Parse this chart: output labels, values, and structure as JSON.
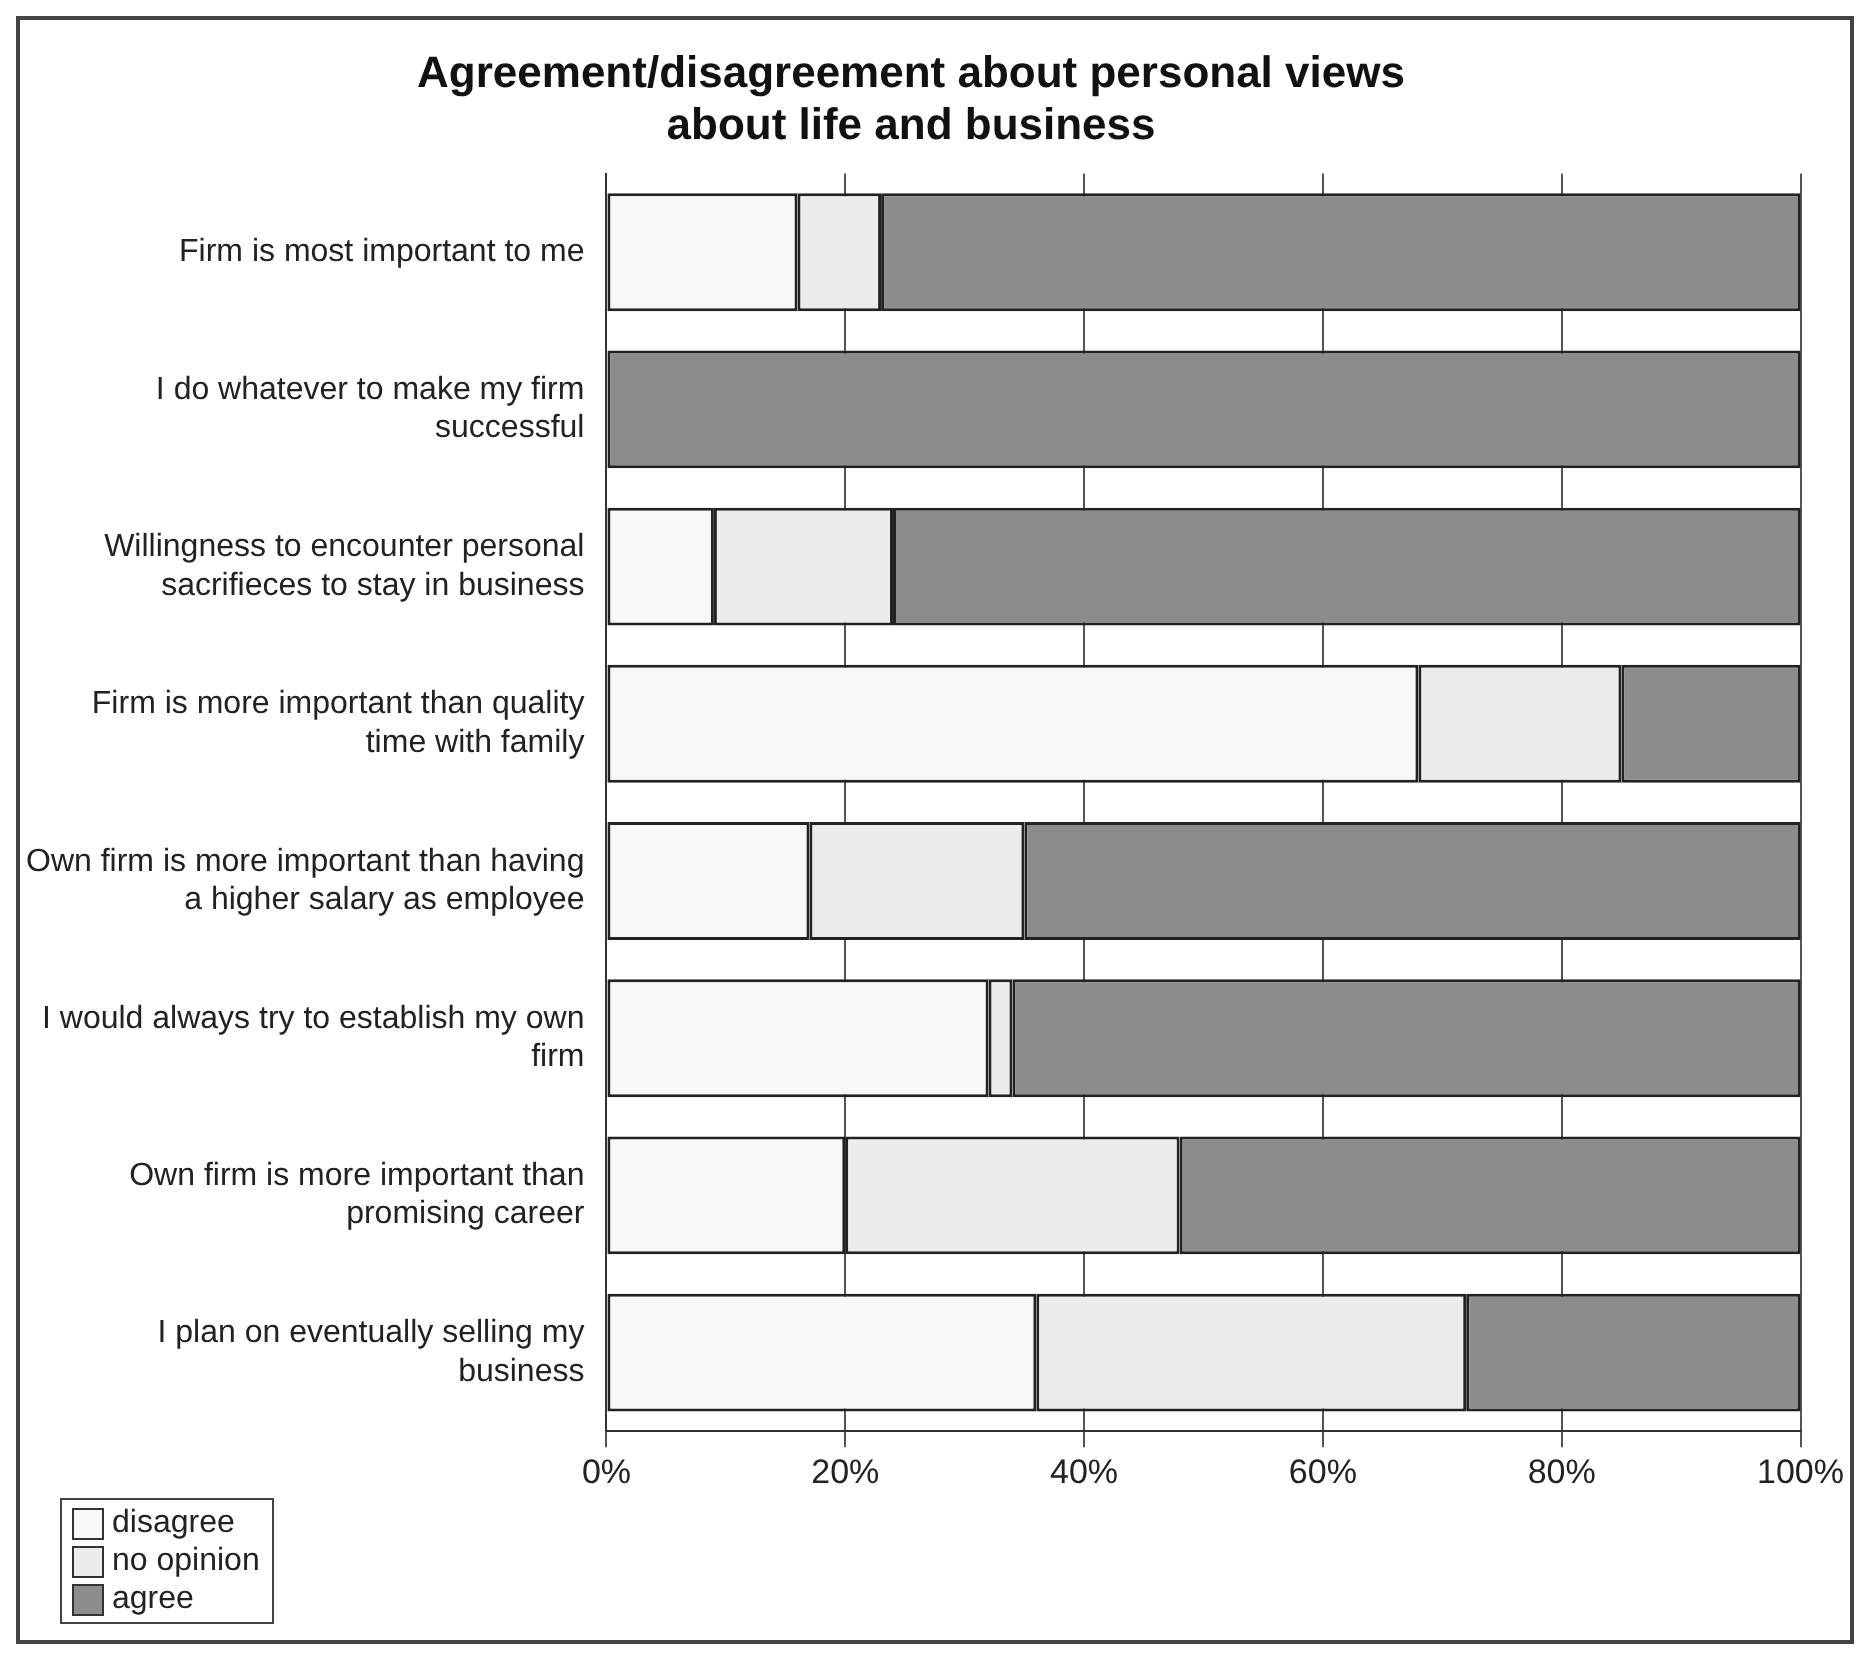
{
  "chart_data": {
    "type": "bar",
    "title": "Agreement/disagreement about personal views about life and business",
    "orientation": "horizontal",
    "stacked": true,
    "categories": [
      "Firm is most important to me",
      "I do whatever to make my firm successful",
      "Willingness to encounter personal sacrifieces to stay in business",
      "Firm is more important than quality time with family",
      "Own firm is more important than having a higher salary as employee",
      "I would always try to establish my own firm",
      "Own firm is more important than promising career",
      "I plan on eventually selling my business"
    ],
    "series": [
      {
        "name": "disagree",
        "color": "#f8f8f8",
        "values": [
          16,
          0,
          9,
          68,
          17,
          32,
          20,
          36
        ]
      },
      {
        "name": "no opinion",
        "color": "#ececec",
        "values": [
          7,
          0,
          15,
          17,
          18,
          2,
          28,
          36
        ]
      },
      {
        "name": "agree",
        "color": "#8c8c8c",
        "values": [
          77,
          100,
          76,
          15,
          65,
          66,
          52,
          28
        ]
      }
    ],
    "xlim": [
      0,
      100
    ],
    "xticks": [
      {
        "value": 0,
        "label": "0%"
      },
      {
        "value": 20,
        "label": "20%"
      },
      {
        "value": 40,
        "label": "40%"
      },
      {
        "value": 60,
        "label": "60%"
      },
      {
        "value": 80,
        "label": "80%"
      },
      {
        "value": 100,
        "label": "100%"
      }
    ],
    "grid": "x",
    "legend": "bottom left"
  }
}
